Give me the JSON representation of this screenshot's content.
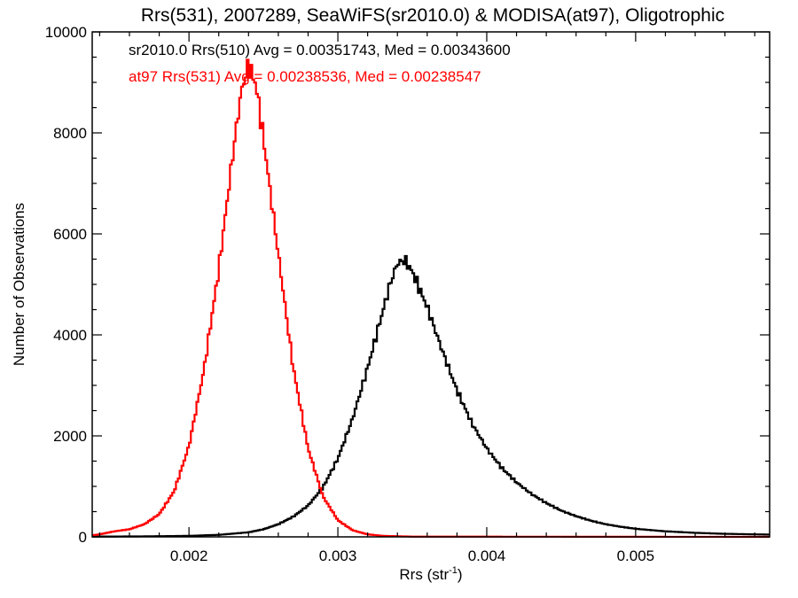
{
  "chart_data": {
    "type": "histogram",
    "title": "Rrs(531), 2007289, SeaWiFS(sr2010.0) & MODISA(at97), Oligotrophic",
    "xlabel_main": "Rrs (str",
    "xlabel_sup": "-1",
    "xlabel_tail": ")",
    "ylabel": "Number of Observations",
    "xlim": [
      0.00135,
      0.0059
    ],
    "ylim": [
      0,
      10000
    ],
    "xticks": [
      0.002,
      0.003,
      0.004,
      0.005
    ],
    "xtick_labels": [
      "0.002",
      "0.003",
      "0.004",
      "0.005"
    ],
    "yticks": [
      0,
      2000,
      4000,
      6000,
      8000,
      10000
    ],
    "ytick_labels": [
      "0",
      "2000",
      "4000",
      "6000",
      "8000",
      "10000"
    ],
    "bin_width": 1.25e-05,
    "annotations": [
      {
        "text": "sr2010.0 Rrs(510) Avg = 0.00351743, Med = 0.00343600",
        "color": "#000000"
      },
      {
        "text": "at97 Rrs(531) Avg = 0.00238536, Med = 0.00238547",
        "color": "#ff0000"
      }
    ],
    "series": [
      {
        "color": "#000000",
        "points": [
          [
            0.00135,
            5
          ],
          [
            0.0017,
            10
          ],
          [
            0.002,
            20
          ],
          [
            0.0022,
            40
          ],
          [
            0.0024,
            90
          ],
          [
            0.0025,
            150
          ],
          [
            0.0026,
            250
          ],
          [
            0.0027,
            400
          ],
          [
            0.0028,
            620
          ],
          [
            0.0029,
            980
          ],
          [
            0.003,
            1550
          ],
          [
            0.0031,
            2350
          ],
          [
            0.0032,
            3350
          ],
          [
            0.0033,
            4450
          ],
          [
            0.00335,
            5000
          ],
          [
            0.0034,
            5420
          ],
          [
            0.00345,
            5480
          ],
          [
            0.0035,
            5250
          ],
          [
            0.0036,
            4550
          ],
          [
            0.0037,
            3700
          ],
          [
            0.0038,
            2900
          ],
          [
            0.0039,
            2250
          ],
          [
            0.004,
            1750
          ],
          [
            0.0041,
            1370
          ],
          [
            0.0042,
            1080
          ],
          [
            0.0043,
            850
          ],
          [
            0.0044,
            670
          ],
          [
            0.0045,
            520
          ],
          [
            0.0046,
            410
          ],
          [
            0.0047,
            320
          ],
          [
            0.0048,
            250
          ],
          [
            0.0049,
            200
          ],
          [
            0.005,
            160
          ],
          [
            0.0052,
            110
          ],
          [
            0.0054,
            80
          ],
          [
            0.0056,
            60
          ],
          [
            0.0059,
            45
          ]
        ]
      },
      {
        "color": "#ff0000",
        "points": [
          [
            0.00135,
            30
          ],
          [
            0.0014,
            50
          ],
          [
            0.0015,
            110
          ],
          [
            0.0016,
            150
          ],
          [
            0.0017,
            250
          ],
          [
            0.0018,
            450
          ],
          [
            0.0019,
            900
          ],
          [
            0.002,
            1800
          ],
          [
            0.0021,
            3300
          ],
          [
            0.0022,
            5300
          ],
          [
            0.0023,
            7700
          ],
          [
            0.00235,
            8800
          ],
          [
            0.0024,
            9350
          ],
          [
            0.00245,
            8950
          ],
          [
            0.0025,
            7900
          ],
          [
            0.0026,
            5600
          ],
          [
            0.0027,
            3350
          ],
          [
            0.0028,
            1750
          ],
          [
            0.0029,
            800
          ],
          [
            0.003,
            330
          ],
          [
            0.0031,
            130
          ],
          [
            0.0032,
            50
          ],
          [
            0.0033,
            20
          ],
          [
            0.0035,
            5
          ],
          [
            0.0059,
            0
          ]
        ]
      }
    ]
  }
}
